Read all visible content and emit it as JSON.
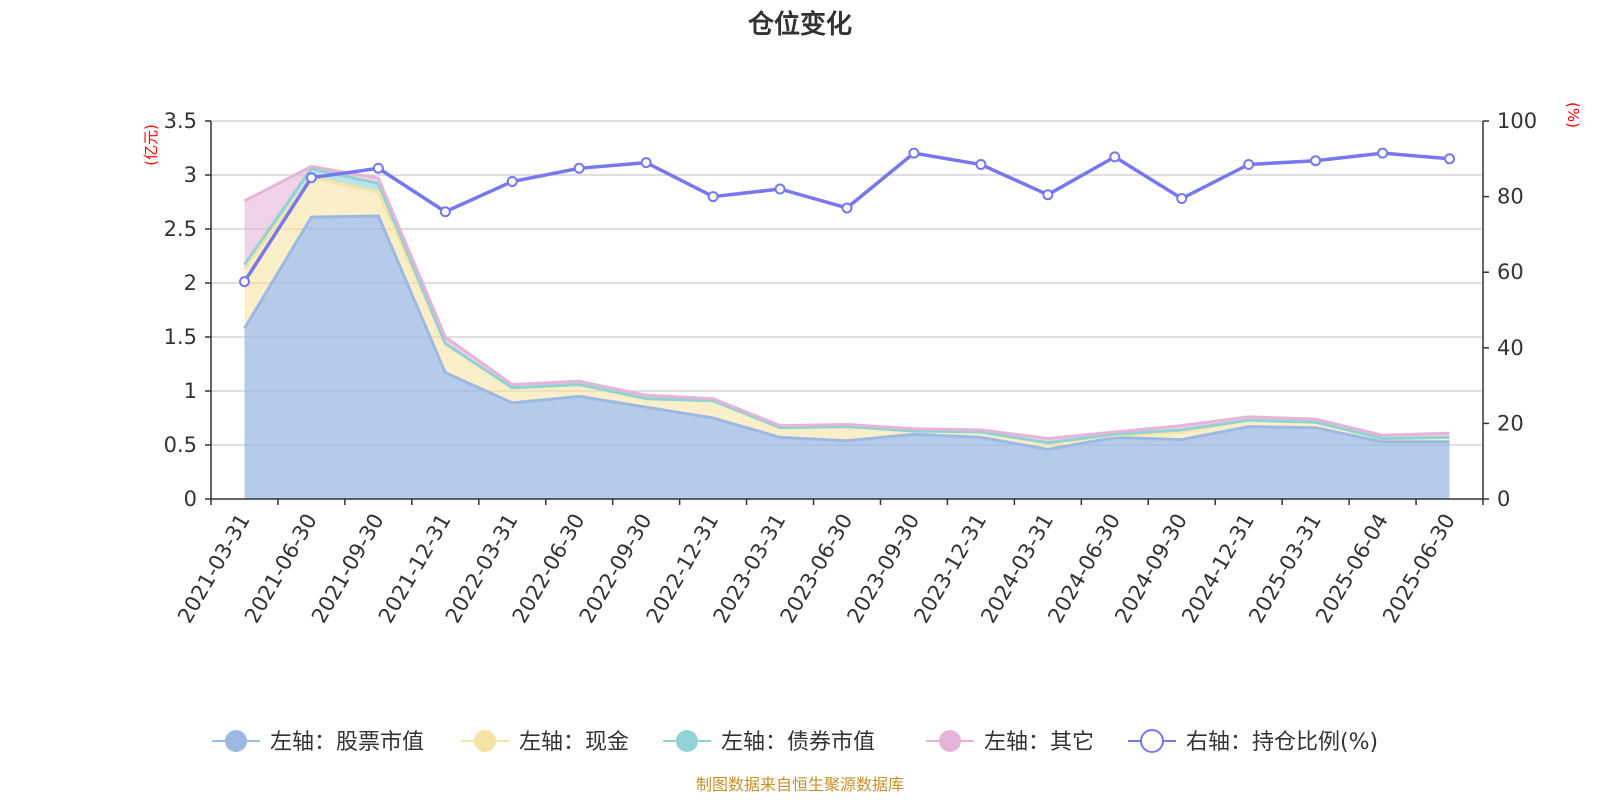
{
  "chart_data": {
    "type": "area",
    "title": "仓位变化",
    "categories": [
      "2021-03-31",
      "2021-06-30",
      "2021-09-30",
      "2021-12-31",
      "2022-03-31",
      "2022-06-30",
      "2022-09-30",
      "2022-12-31",
      "2023-03-31",
      "2023-06-30",
      "2023-09-30",
      "2023-12-31",
      "2024-03-31",
      "2024-06-30",
      "2024-09-30",
      "2024-12-31",
      "2025-03-31",
      "2025-06-04",
      "2025-06-30"
    ],
    "left_axis": {
      "unit": "(亿元)",
      "ylim": [
        0,
        3.5
      ],
      "ticks": [
        "0",
        "0.5",
        "1",
        "1.5",
        "2",
        "2.5",
        "3",
        "3.5"
      ]
    },
    "right_axis": {
      "unit": "(%)",
      "ylim": [
        0,
        100
      ],
      "ticks": [
        "0",
        "20",
        "40",
        "60",
        "80",
        "100"
      ]
    },
    "grid": true,
    "legend_position": "bottom",
    "series": [
      {
        "name": "左轴：股票市值",
        "axis": "left",
        "color": "#9db9e3",
        "values": [
          1.58,
          2.61,
          2.62,
          1.17,
          0.89,
          0.95,
          0.85,
          0.75,
          0.57,
          0.54,
          0.6,
          0.57,
          0.46,
          0.57,
          0.55,
          0.67,
          0.66,
          0.53,
          0.53
        ]
      },
      {
        "name": "左轴：现金",
        "axis": "left",
        "color": "#f6e4a4",
        "values": [
          0.55,
          0.37,
          0.22,
          0.27,
          0.14,
          0.11,
          0.08,
          0.16,
          0.09,
          0.13,
          0.03,
          0.05,
          0.06,
          0.02,
          0.07,
          0.06,
          0.05,
          0.03,
          0.04
        ]
      },
      {
        "name": "左轴：债券市值",
        "axis": "left",
        "color": "#91d2d4",
        "values": [
          0.04,
          0.08,
          0.08,
          0,
          0,
          0,
          0,
          0,
          0,
          0,
          0,
          0,
          0,
          0.01,
          0.02,
          0,
          0,
          0,
          0
        ]
      },
      {
        "name": "左轴：其它",
        "axis": "left",
        "color": "#e6b4d8",
        "values": [
          0.59,
          0.02,
          0.05,
          0.06,
          0.03,
          0.03,
          0.03,
          0.02,
          0.02,
          0.02,
          0.02,
          0.02,
          0.04,
          0.02,
          0.04,
          0.03,
          0.03,
          0.03,
          0.04
        ]
      },
      {
        "name": "右轴：持仓比例(%)",
        "axis": "right",
        "color": "#7777ee",
        "values": [
          57.5,
          85,
          87.5,
          76,
          84,
          87.5,
          89,
          80,
          82,
          77,
          91.5,
          88.5,
          80.5,
          90.5,
          79.5,
          88.5,
          89.5,
          91.5,
          90
        ]
      }
    ]
  },
  "source_text": "制图数据来自恒生聚源数据库"
}
